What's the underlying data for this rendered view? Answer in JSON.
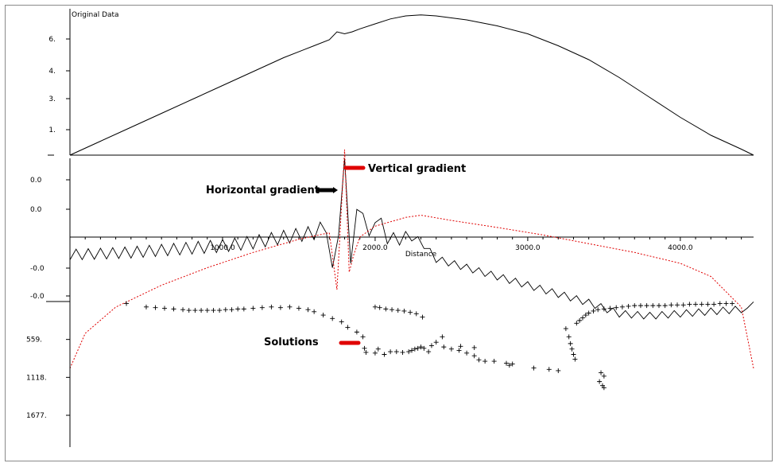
{
  "chart_data": [
    {
      "type": "line",
      "title": "Original Data",
      "y_ticks": [
        "6.",
        "4.",
        "3.",
        "1."
      ],
      "series": [
        {
          "color": "#000000",
          "x": [
            0,
            200,
            400,
            600,
            800,
            1000,
            1200,
            1400,
            1600,
            1700,
            1750,
            1800,
            1850,
            1900,
            2000,
            2100,
            2200,
            2300,
            2400,
            2600,
            2800,
            3000,
            3200,
            3400,
            3600,
            3800,
            4000,
            4200,
            4400,
            4480
          ],
          "y": [
            0.0,
            0.7,
            1.4,
            2.1,
            2.8,
            3.5,
            4.2,
            4.9,
            5.5,
            5.8,
            6.2,
            6.1,
            6.2,
            6.35,
            6.6,
            6.85,
            7.0,
            7.05,
            7.0,
            6.8,
            6.5,
            6.1,
            5.5,
            4.8,
            3.9,
            2.9,
            1.9,
            1.0,
            0.3,
            0.0
          ]
        }
      ]
    },
    {
      "type": "line",
      "xlabel": "Distance",
      "x_ticks": [
        "1000.0",
        "2000.0",
        "3000.0",
        "4000.0"
      ],
      "y_ticks": [
        "0.0",
        "0.0",
        "-0.0",
        "-0.0"
      ],
      "series": [
        {
          "color": "#000000",
          "style": "solid",
          "x": [
            0,
            200,
            400,
            600,
            800,
            1000,
            1200,
            1400,
            1600,
            1700,
            1720,
            1750,
            1780,
            1800,
            1820,
            1850,
            1870,
            1900,
            1950,
            2000,
            2100,
            2200,
            2300,
            2400,
            2600,
            2800,
            3000,
            3200,
            3400,
            3600,
            3800,
            4000,
            4200,
            4400,
            4440,
            4480
          ],
          "y": [
            -0.4,
            -0.38,
            -0.35,
            -0.3,
            -0.25,
            -0.2,
            -0.12,
            0.0,
            0.1,
            0.3,
            -0.7,
            0.5,
            -0.9,
            1.8,
            0.6,
            -1.2,
            0.4,
            1.1,
            -0.3,
            0.5,
            -0.1,
            0.05,
            -0.1,
            -0.5,
            -0.7,
            -0.9,
            -1.1,
            -1.3,
            -1.5,
            -1.75,
            -1.8,
            -1.75,
            -1.7,
            -1.65,
            -1.7,
            -1.4
          ]
        },
        {
          "color": "#e00000",
          "style": "dashed",
          "x": [
            0,
            100,
            300,
            600,
            900,
            1200,
            1500,
            1700,
            1750,
            1800,
            1830,
            1860,
            1900,
            2000,
            2100,
            2200,
            2300,
            2500,
            2800,
            3100,
            3400,
            3700,
            4000,
            4200,
            4400,
            4480
          ],
          "y": [
            -3.0,
            -2.2,
            -1.6,
            -1.1,
            -0.7,
            -0.35,
            -0.05,
            0.1,
            -1.2,
            2.0,
            -0.8,
            -0.4,
            0.0,
            0.25,
            0.35,
            0.45,
            0.5,
            0.38,
            0.22,
            0.05,
            -0.15,
            -0.35,
            -0.6,
            -0.9,
            -1.6,
            -3.0
          ]
        }
      ]
    },
    {
      "type": "scatter",
      "y_ticks": [
        "559.",
        "1118.",
        "1677."
      ],
      "points": [
        [
          370,
          30
        ],
        [
          500,
          80
        ],
        [
          560,
          90
        ],
        [
          620,
          100
        ],
        [
          680,
          110
        ],
        [
          740,
          120
        ],
        [
          780,
          130
        ],
        [
          820,
          130
        ],
        [
          860,
          130
        ],
        [
          900,
          130
        ],
        [
          940,
          130
        ],
        [
          980,
          130
        ],
        [
          1020,
          120
        ],
        [
          1060,
          120
        ],
        [
          1100,
          110
        ],
        [
          1140,
          110
        ],
        [
          1200,
          100
        ],
        [
          1260,
          90
        ],
        [
          1320,
          80
        ],
        [
          1380,
          90
        ],
        [
          1440,
          80
        ],
        [
          1500,
          100
        ],
        [
          1560,
          120
        ],
        [
          1600,
          150
        ],
        [
          1660,
          200
        ],
        [
          1720,
          250
        ],
        [
          1780,
          300
        ],
        [
          1820,
          380
        ],
        [
          1880,
          450
        ],
        [
          1920,
          520
        ],
        [
          1930,
          690
        ],
        [
          1940,
          750
        ],
        [
          2000,
          80
        ],
        [
          2030,
          90
        ],
        [
          2070,
          110
        ],
        [
          2110,
          120
        ],
        [
          2150,
          130
        ],
        [
          2190,
          140
        ],
        [
          2230,
          160
        ],
        [
          2270,
          180
        ],
        [
          2310,
          230
        ],
        [
          2000,
          760
        ],
        [
          2020,
          700
        ],
        [
          2060,
          780
        ],
        [
          2100,
          740
        ],
        [
          2140,
          740
        ],
        [
          2180,
          750
        ],
        [
          2220,
          740
        ],
        [
          2240,
          720
        ],
        [
          2260,
          700
        ],
        [
          2280,
          690
        ],
        [
          2300,
          670
        ],
        [
          2320,
          690
        ],
        [
          2350,
          740
        ],
        [
          2370,
          650
        ],
        [
          2400,
          600
        ],
        [
          2440,
          520
        ],
        [
          2500,
          700
        ],
        [
          2550,
          720
        ],
        [
          2600,
          760
        ],
        [
          2650,
          800
        ],
        [
          2680,
          860
        ],
        [
          2720,
          880
        ],
        [
          2780,
          880
        ],
        [
          2860,
          910
        ],
        [
          2900,
          920
        ],
        [
          2450,
          670
        ],
        [
          2560,
          660
        ],
        [
          2650,
          680
        ],
        [
          2880,
          940
        ],
        [
          3040,
          980
        ],
        [
          3200,
          1020
        ],
        [
          3140,
          1000
        ],
        [
          3250,
          400
        ],
        [
          3270,
          520
        ],
        [
          3280,
          620
        ],
        [
          3290,
          700
        ],
        [
          3300,
          780
        ],
        [
          3310,
          850
        ],
        [
          3320,
          320
        ],
        [
          3340,
          280
        ],
        [
          3360,
          240
        ],
        [
          3380,
          200
        ],
        [
          3400,
          170
        ],
        [
          3430,
          140
        ],
        [
          3460,
          120
        ],
        [
          3500,
          110
        ],
        [
          3540,
          100
        ],
        [
          3580,
          90
        ],
        [
          3620,
          80
        ],
        [
          3660,
          70
        ],
        [
          3700,
          60
        ],
        [
          3740,
          60
        ],
        [
          3780,
          60
        ],
        [
          3820,
          60
        ],
        [
          3860,
          60
        ],
        [
          3900,
          60
        ],
        [
          3940,
          50
        ],
        [
          3980,
          50
        ],
        [
          4020,
          50
        ],
        [
          4060,
          40
        ],
        [
          4100,
          40
        ],
        [
          4140,
          40
        ],
        [
          4180,
          40
        ],
        [
          4220,
          40
        ],
        [
          4260,
          30
        ],
        [
          4300,
          30
        ],
        [
          4340,
          30
        ],
        [
          3480,
          1050
        ],
        [
          3500,
          1100
        ],
        [
          3470,
          1180
        ],
        [
          3490,
          1240
        ],
        [
          3500,
          1270
        ]
      ]
    }
  ],
  "annotations": {
    "vertical": "Vertical gradient",
    "horizontal": "Horizontal gradient",
    "solutions": "Solutions"
  }
}
